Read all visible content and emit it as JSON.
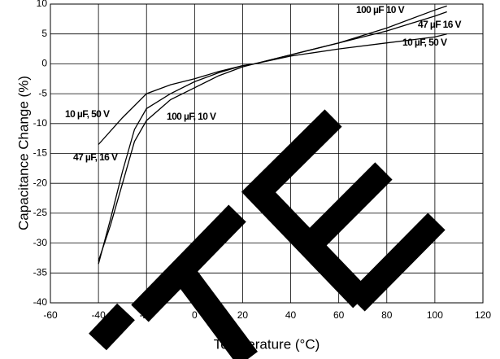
{
  "chart_data": {
    "type": "line",
    "xlabel": "Temperature (°C)",
    "ylabel": "Capacitance Change (%)",
    "xlim": [
      -60,
      120
    ],
    "ylim": [
      -40,
      10
    ],
    "xticks": [
      -60,
      -40,
      -20,
      0,
      20,
      40,
      60,
      80,
      100,
      120
    ],
    "yticks": [
      -40,
      -35,
      -30,
      -25,
      -20,
      -15,
      -10,
      -5,
      0,
      5,
      10
    ],
    "grid": true,
    "series": [
      {
        "name": "10 µF, 50 V",
        "color": "#000000",
        "x": [
          -40,
          -30,
          -20,
          -10,
          0,
          10,
          20,
          25,
          40,
          60,
          80,
          100,
          105
        ],
        "values": [
          -13.5,
          -9,
          -5,
          -3.5,
          -2.5,
          -1.3,
          -0.3,
          0,
          1.3,
          2.5,
          3.5,
          4.5,
          5
        ]
      },
      {
        "name": "100 µF, 10 V",
        "color": "#000000",
        "x": [
          -40,
          -35,
          -30,
          -25,
          -20,
          -10,
          0,
          10,
          20,
          25,
          40,
          60,
          80,
          100,
          105
        ],
        "values": [
          -33,
          -27,
          -20,
          -13,
          -9.5,
          -6,
          -4,
          -2,
          -0.5,
          0,
          1.5,
          3.5,
          6,
          9,
          9.7
        ]
      },
      {
        "name": "47 µF, 16 V",
        "color": "#000000",
        "x": [
          -40,
          -35,
          -30,
          -25,
          -20,
          -10,
          0,
          10,
          20,
          25,
          40,
          60,
          80,
          100,
          105
        ],
        "values": [
          -33.5,
          -26,
          -18,
          -11,
          -7.5,
          -5,
          -3,
          -1.5,
          -0.3,
          0,
          1.5,
          3.5,
          5.5,
          8,
          8.7
        ]
      }
    ],
    "annotations": [
      "100 µF 10 V",
      "47 µF 16 V",
      "10 µF, 50 V"
    ]
  }
}
